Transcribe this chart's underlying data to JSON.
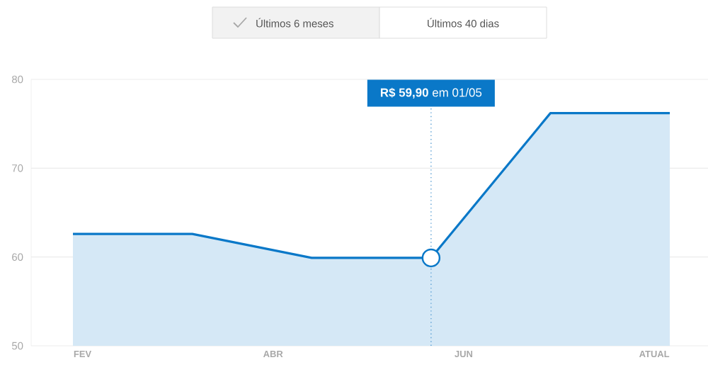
{
  "chart_data": {
    "type": "area",
    "categories": [
      null,
      null,
      null,
      null,
      null,
      null
    ],
    "values": [
      62.6,
      62.6,
      59.9,
      59.9,
      76.2,
      76.2
    ],
    "color": "#0a78c8",
    "ylim": [
      50,
      80
    ],
    "yticks": [
      50,
      60,
      70,
      80
    ],
    "grid": "y",
    "annotations": [
      "**R$ 59,90** em 01/05",
      "Últimos 6 meses",
      "Últimos 40 dias",
      "FEV",
      "ABR",
      "JUN",
      "ATUAL"
    ]
  }
}
